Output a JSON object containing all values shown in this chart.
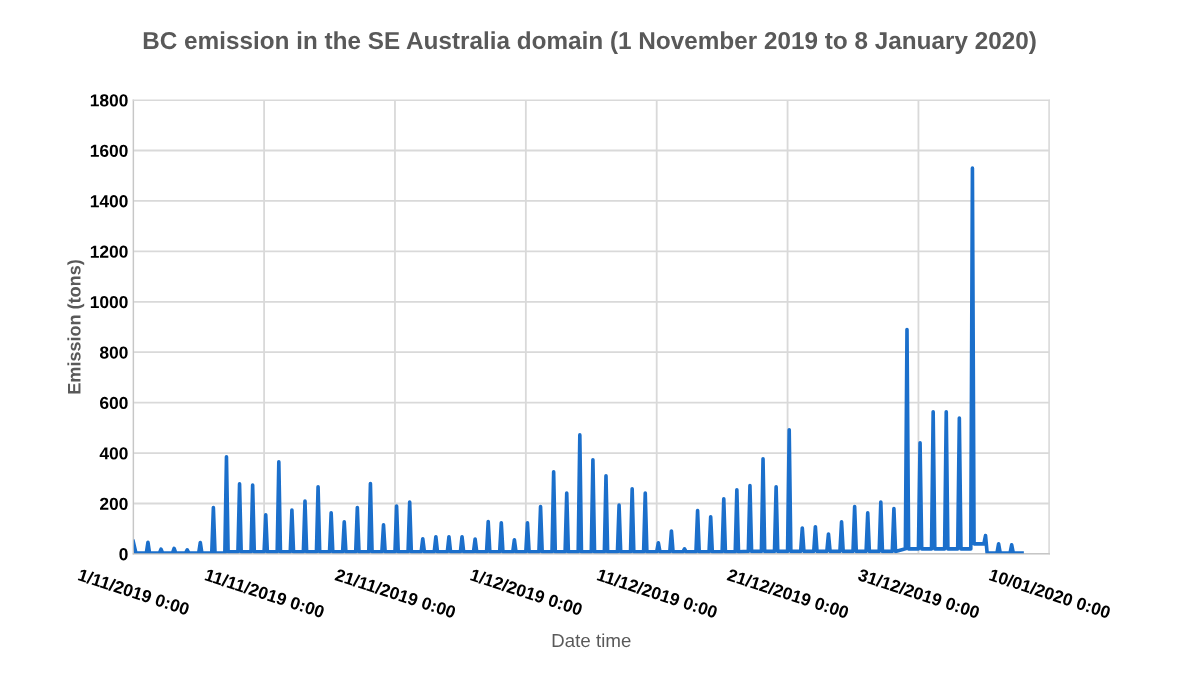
{
  "chart_data": {
    "type": "line",
    "title": "BC emission in the SE Australia domain (1 November 2019 to 8 January 2020)",
    "xlabel": "Date time",
    "ylabel": "Emission (tons)",
    "xlim": [
      "2019-11-01",
      "2020-01-10"
    ],
    "xticks": [
      {
        "value": "2019-11-01",
        "label": "1/11/2019 0:00"
      },
      {
        "value": "2019-11-11",
        "label": "11/11/2019 0:00"
      },
      {
        "value": "2019-11-21",
        "label": "21/11/2019 0:00"
      },
      {
        "value": "2019-12-01",
        "label": "1/12/2019 0:00"
      },
      {
        "value": "2019-12-11",
        "label": "11/12/2019 0:00"
      },
      {
        "value": "2019-12-21",
        "label": "21/12/2019 0:00"
      },
      {
        "value": "2019-12-31",
        "label": "31/12/2019 0:00"
      },
      {
        "value": "2020-01-10",
        "label": "10/01/2020 0:00"
      }
    ],
    "ylim": [
      0,
      1800
    ],
    "yticks": [
      0,
      200,
      400,
      600,
      800,
      1000,
      1200,
      1400,
      1600,
      1800
    ],
    "grid": true,
    "line_style": "solid",
    "x": [
      "2019-11-01T00:00",
      "2019-11-01T05:00",
      "2019-11-02T00:00",
      "2019-11-02T03:00",
      "2019-11-02T06:00",
      "2019-11-03T00:00",
      "2019-11-03T03:00",
      "2019-11-03T06:00",
      "2019-11-04T00:00",
      "2019-11-04T03:00",
      "2019-11-04T06:00",
      "2019-11-05T00:00",
      "2019-11-05T03:00",
      "2019-11-05T06:00",
      "2019-11-06T00:00",
      "2019-11-06T03:00",
      "2019-11-06T06:00",
      "2019-11-07T00:00",
      "2019-11-07T03:00",
      "2019-11-07T06:00",
      "2019-11-08T00:00",
      "2019-11-08T03:00",
      "2019-11-08T06:00",
      "2019-11-09T00:00",
      "2019-11-09T03:00",
      "2019-11-09T06:00",
      "2019-11-10T00:00",
      "2019-11-10T03:00",
      "2019-11-10T06:00",
      "2019-11-11T00:00",
      "2019-11-11T03:00",
      "2019-11-11T06:00",
      "2019-11-12T00:00",
      "2019-11-12T03:00",
      "2019-11-12T06:00",
      "2019-11-13T00:00",
      "2019-11-13T03:00",
      "2019-11-13T06:00",
      "2019-11-14T00:00",
      "2019-11-14T03:00",
      "2019-11-14T06:00",
      "2019-11-15T00:00",
      "2019-11-15T03:00",
      "2019-11-15T06:00",
      "2019-11-16T00:00",
      "2019-11-16T03:00",
      "2019-11-16T06:00",
      "2019-11-17T00:00",
      "2019-11-17T03:00",
      "2019-11-17T06:00",
      "2019-11-18T00:00",
      "2019-11-18T03:00",
      "2019-11-18T06:00",
      "2019-11-19T00:00",
      "2019-11-19T03:00",
      "2019-11-19T06:00",
      "2019-11-20T00:00",
      "2019-11-20T03:00",
      "2019-11-20T06:00",
      "2019-11-21T00:00",
      "2019-11-21T03:00",
      "2019-11-21T06:00",
      "2019-11-22T00:00",
      "2019-11-22T03:00",
      "2019-11-22T06:00",
      "2019-11-23T00:00",
      "2019-11-23T03:00",
      "2019-11-23T06:00",
      "2019-11-24T00:00",
      "2019-11-24T03:00",
      "2019-11-24T06:00",
      "2019-11-25T00:00",
      "2019-11-25T03:00",
      "2019-11-25T06:00",
      "2019-11-26T00:00",
      "2019-11-26T03:00",
      "2019-11-26T06:00",
      "2019-11-27T00:00",
      "2019-11-27T03:00",
      "2019-11-27T06:00",
      "2019-11-28T00:00",
      "2019-11-28T03:00",
      "2019-11-28T06:00",
      "2019-11-29T00:00",
      "2019-11-29T03:00",
      "2019-11-29T06:00",
      "2019-11-30T00:00",
      "2019-11-30T03:00",
      "2019-11-30T06:00",
      "2019-12-01T00:00",
      "2019-12-01T03:00",
      "2019-12-01T06:00",
      "2019-12-02T00:00",
      "2019-12-02T03:00",
      "2019-12-02T06:00",
      "2019-12-03T00:00",
      "2019-12-03T03:00",
      "2019-12-03T06:00",
      "2019-12-04T00:00",
      "2019-12-04T03:00",
      "2019-12-04T06:00",
      "2019-12-05T00:00",
      "2019-12-05T03:00",
      "2019-12-05T06:00",
      "2019-12-06T00:00",
      "2019-12-06T03:00",
      "2019-12-06T06:00",
      "2019-12-07T00:00",
      "2019-12-07T03:00",
      "2019-12-07T06:00",
      "2019-12-08T00:00",
      "2019-12-08T03:00",
      "2019-12-08T06:00",
      "2019-12-09T00:00",
      "2019-12-09T03:00",
      "2019-12-09T06:00",
      "2019-12-10T00:00",
      "2019-12-10T03:00",
      "2019-12-10T06:00",
      "2019-12-11T00:00",
      "2019-12-11T03:00",
      "2019-12-11T06:00",
      "2019-12-12T00:00",
      "2019-12-12T03:00",
      "2019-12-12T06:00",
      "2019-12-13T00:00",
      "2019-12-13T03:00",
      "2019-12-13T06:00",
      "2019-12-14T00:00",
      "2019-12-14T03:00",
      "2019-12-14T06:00",
      "2019-12-15T00:00",
      "2019-12-15T03:00",
      "2019-12-15T06:00",
      "2019-12-16T00:00",
      "2019-12-16T03:00",
      "2019-12-16T06:00",
      "2019-12-17T00:00",
      "2019-12-17T03:00",
      "2019-12-17T06:00",
      "2019-12-18T00:00",
      "2019-12-18T03:00",
      "2019-12-18T06:00",
      "2019-12-19T00:00",
      "2019-12-19T03:00",
      "2019-12-19T06:00",
      "2019-12-20T00:00",
      "2019-12-20T03:00",
      "2019-12-20T06:00",
      "2019-12-21T00:00",
      "2019-12-21T03:00",
      "2019-12-21T06:00",
      "2019-12-22T00:00",
      "2019-12-22T03:00",
      "2019-12-22T06:00",
      "2019-12-23T00:00",
      "2019-12-23T03:00",
      "2019-12-23T06:00",
      "2019-12-24T00:00",
      "2019-12-24T03:00",
      "2019-12-24T06:00",
      "2019-12-25T00:00",
      "2019-12-25T03:00",
      "2019-12-25T06:00",
      "2019-12-26T00:00",
      "2019-12-26T03:00",
      "2019-12-26T06:00",
      "2019-12-27T00:00",
      "2019-12-27T03:00",
      "2019-12-27T06:00",
      "2019-12-28T00:00",
      "2019-12-28T03:00",
      "2019-12-28T06:00",
      "2019-12-29T00:00",
      "2019-12-29T03:00",
      "2019-12-29T06:00",
      "2019-12-30T00:00",
      "2019-12-30T03:00",
      "2019-12-30T06:00",
      "2019-12-31T00:00",
      "2019-12-31T03:00",
      "2019-12-31T06:00",
      "2020-01-01T00:00",
      "2020-01-01T03:00",
      "2020-01-01T06:00",
      "2020-01-02T00:00",
      "2020-01-02T03:00",
      "2020-01-02T06:00",
      "2020-01-03T00:00",
      "2020-01-03T03:00",
      "2020-01-03T06:00",
      "2020-01-04T00:00",
      "2020-01-04T03:00",
      "2020-01-04T06:00",
      "2020-01-05T00:00",
      "2020-01-05T03:00",
      "2020-01-05T06:00",
      "2020-01-06T00:00",
      "2020-01-06T03:00",
      "2020-01-06T06:00",
      "2020-01-07T00:00",
      "2020-01-07T03:00",
      "2020-01-07T06:00",
      "2020-01-07T22:00"
    ],
    "series": [
      {
        "color": "#1b6fcb",
        "values": [
          50,
          3,
          3,
          46,
          3,
          3,
          19,
          3,
          3,
          22,
          3,
          3,
          16,
          3,
          3,
          45,
          3,
          3,
          184,
          3,
          3,
          385,
          8,
          8,
          278,
          8,
          8,
          273,
          8,
          8,
          155,
          8,
          8,
          365,
          8,
          8,
          174,
          8,
          8,
          210,
          8,
          8,
          266,
          8,
          8,
          163,
          8,
          8,
          127,
          8,
          8,
          184,
          8,
          8,
          279,
          8,
          8,
          115,
          8,
          8,
          190,
          8,
          8,
          206,
          8,
          8,
          60,
          8,
          8,
          68,
          8,
          8,
          68,
          8,
          8,
          68,
          8,
          8,
          59,
          8,
          8,
          128,
          8,
          8,
          123,
          8,
          8,
          56,
          8,
          8,
          123,
          8,
          8,
          188,
          8,
          8,
          326,
          8,
          8,
          241,
          8,
          8,
          472,
          8,
          8,
          373,
          8,
          8,
          310,
          8,
          8,
          194,
          8,
          8,
          258,
          8,
          8,
          241,
          8,
          8,
          44,
          8,
          8,
          91,
          8,
          8,
          20,
          8,
          8,
          172,
          8,
          8,
          147,
          8,
          8,
          219,
          8,
          8,
          254,
          8,
          10,
          271,
          10,
          10,
          377,
          10,
          10,
          266,
          10,
          10,
          492,
          10,
          10,
          103,
          10,
          10,
          108,
          10,
          10,
          79,
          10,
          10,
          127,
          10,
          10,
          188,
          10,
          10,
          163,
          10,
          10,
          206,
          10,
          10,
          180,
          10,
          20,
          890,
          20,
          20,
          441,
          20,
          20,
          564,
          20,
          20,
          564,
          20,
          20,
          539,
          20,
          20,
          1530,
          40,
          40,
          73,
          3,
          3,
          40,
          3,
          3,
          36,
          3,
          3
        ]
      }
    ]
  }
}
